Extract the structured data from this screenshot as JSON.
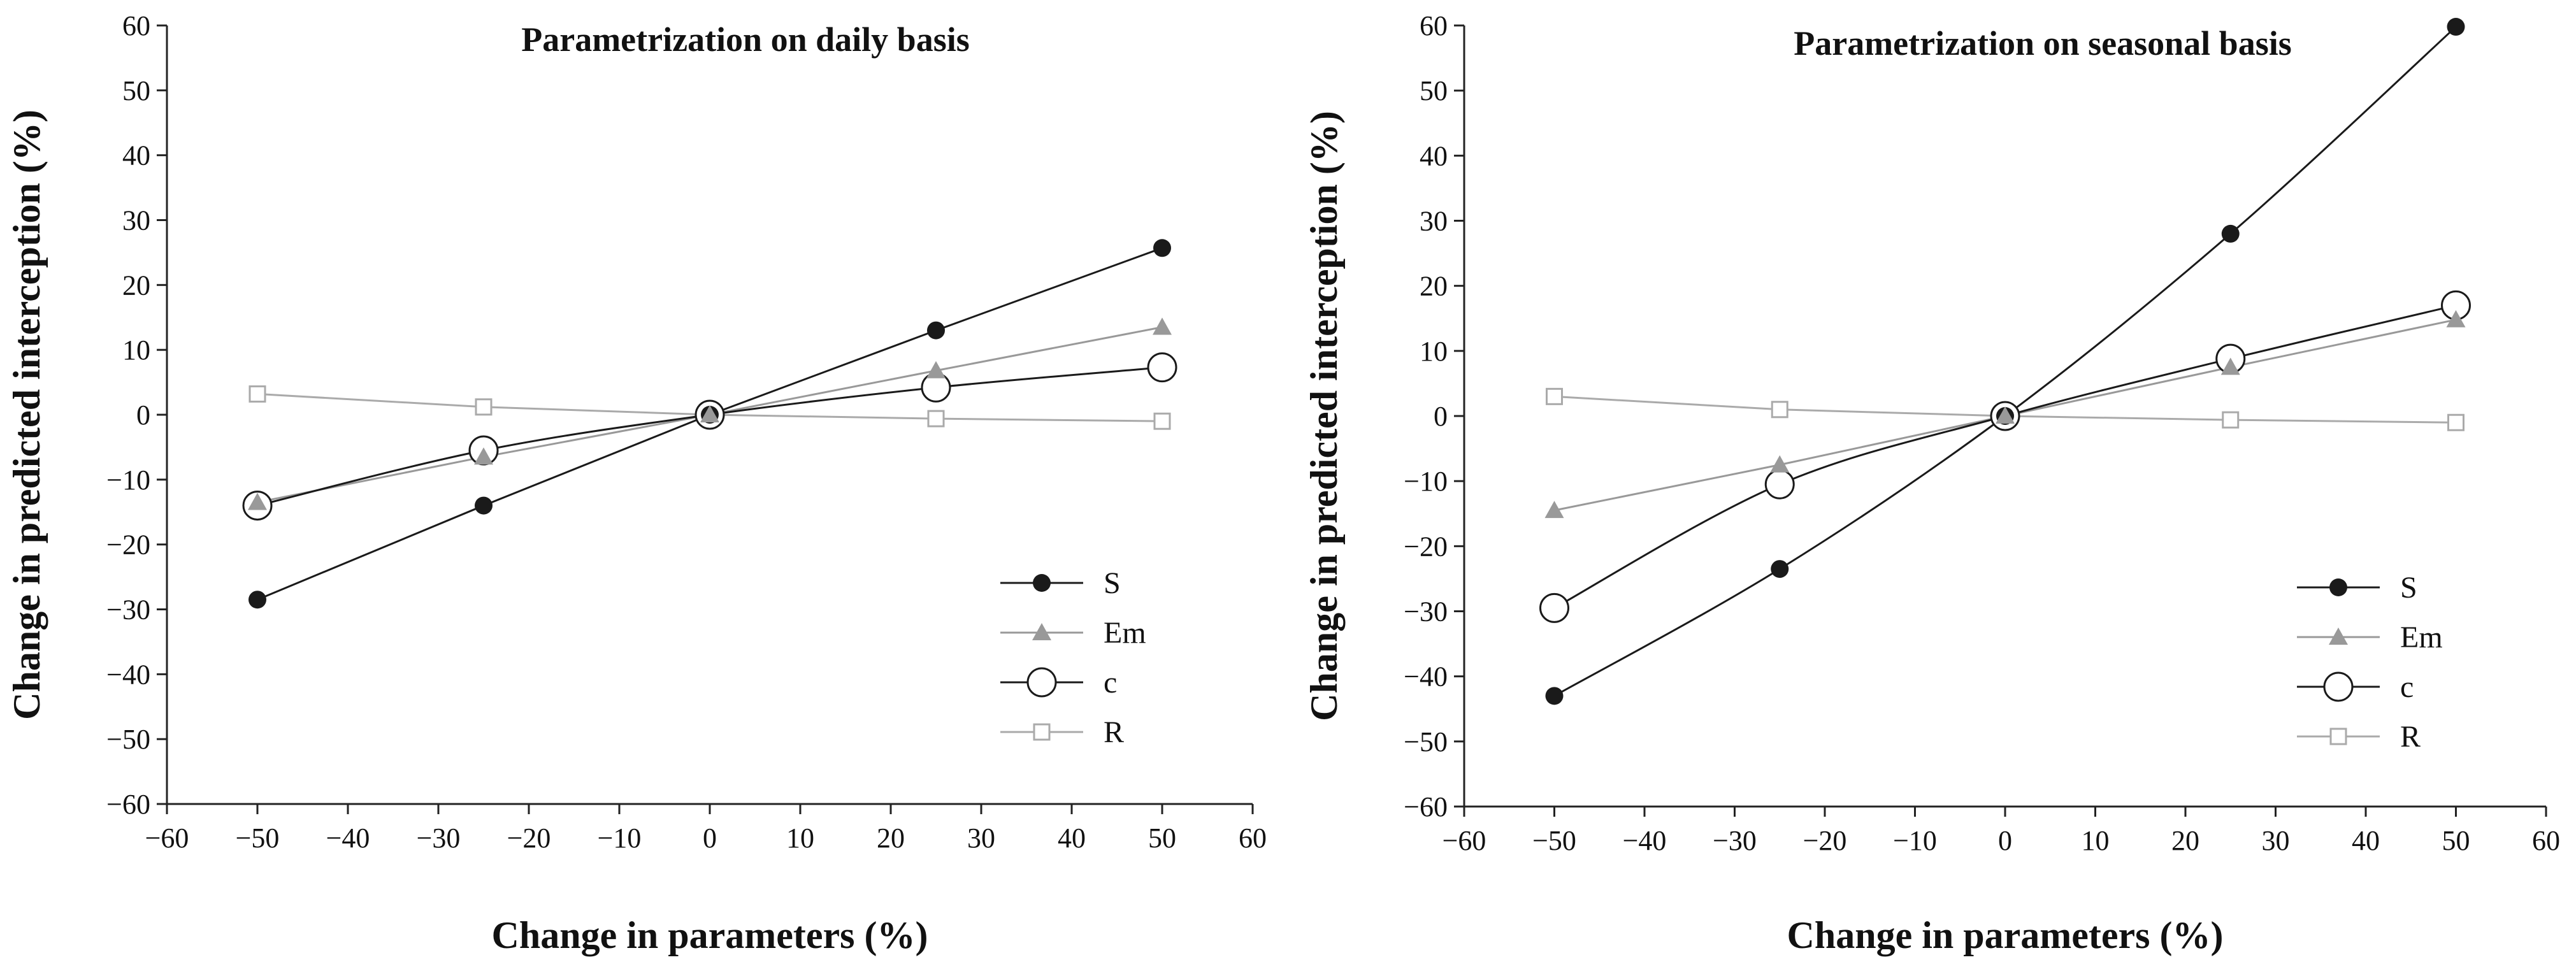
{
  "chart_data": [
    {
      "type": "line",
      "title": "Parametrization on daily basis",
      "xlabel": "Change in parameters (%)",
      "ylabel": "Change in predicted interception (%)",
      "xlim": [
        -60,
        60
      ],
      "ylim": [
        -60,
        60
      ],
      "xticks": [
        -60,
        -50,
        -40,
        -30,
        -20,
        -10,
        0,
        10,
        20,
        30,
        40,
        50,
        60
      ],
      "yticks": [
        -60,
        -50,
        -40,
        -30,
        -20,
        -10,
        0,
        10,
        20,
        30,
        40,
        50,
        60
      ],
      "xtick_labels": [
        "−60",
        "−50",
        "−40",
        "−30",
        "−20",
        "−10",
        "0",
        "10",
        "20",
        "30",
        "40",
        "50",
        "60"
      ],
      "ytick_labels": [
        "−60",
        "−50",
        "−40",
        "−30",
        "−20",
        "−10",
        "0",
        "10",
        "20",
        "30",
        "40",
        "50",
        "60"
      ],
      "grid": false,
      "legend_position": "bottom-right",
      "x": [
        -50,
        -25,
        0,
        25,
        50
      ],
      "series": [
        {
          "name": "S",
          "values": [
            -28.5,
            -14,
            0,
            13,
            25.7
          ],
          "marker": "filled-circle",
          "color": "#1a1a1a",
          "smooth": false
        },
        {
          "name": "Em",
          "values": [
            -13.5,
            -6.5,
            0,
            6.8,
            13.5
          ],
          "marker": "filled-triangle",
          "color": "#999999",
          "smooth": false
        },
        {
          "name": "c",
          "values": [
            -14,
            -5.5,
            0,
            4.2,
            7.3
          ],
          "marker": "open-circle",
          "color": "#1a1a1a",
          "smooth": true
        },
        {
          "name": "R",
          "values": [
            3.2,
            1.2,
            0,
            -0.6,
            -1
          ],
          "marker": "open-square",
          "color": "#aaaaaa",
          "smooth": false
        }
      ]
    },
    {
      "type": "line",
      "title": "Parametrization on seasonal basis",
      "xlabel": "Change in parameters (%)",
      "ylabel": "Change in predicted interception (%)",
      "xlim": [
        -60,
        60
      ],
      "ylim": [
        -60,
        60
      ],
      "xticks": [
        -60,
        -50,
        -40,
        -30,
        -20,
        -10,
        0,
        10,
        20,
        30,
        40,
        50,
        60
      ],
      "yticks": [
        -60,
        -50,
        -40,
        -30,
        -20,
        -10,
        0,
        10,
        20,
        30,
        40,
        50,
        60
      ],
      "xtick_labels": [
        "−60",
        "−50",
        "−40",
        "−30",
        "−20",
        "−10",
        "0",
        "10",
        "20",
        "30",
        "40",
        "50",
        "60"
      ],
      "ytick_labels": [
        "−60",
        "−50",
        "−40",
        "−30",
        "−20",
        "−10",
        "0",
        "10",
        "20",
        "30",
        "40",
        "50",
        "60"
      ],
      "grid": false,
      "legend_position": "bottom-right",
      "x": [
        -50,
        -25,
        0,
        25,
        50
      ],
      "series": [
        {
          "name": "S",
          "values": [
            -43,
            -23.5,
            0,
            28,
            59.8
          ],
          "marker": "filled-circle",
          "color": "#1a1a1a",
          "smooth": true
        },
        {
          "name": "Em",
          "values": [
            -14.5,
            -7.5,
            0,
            7.5,
            14.8
          ],
          "marker": "filled-triangle",
          "color": "#999999",
          "smooth": false
        },
        {
          "name": "c",
          "values": [
            -29.5,
            -10.5,
            0,
            8.8,
            17
          ],
          "marker": "open-circle",
          "color": "#1a1a1a",
          "smooth": true
        },
        {
          "name": "R",
          "values": [
            3,
            1,
            0,
            -0.6,
            -1
          ],
          "marker": "open-square",
          "color": "#aaaaaa",
          "smooth": false
        }
      ]
    }
  ]
}
